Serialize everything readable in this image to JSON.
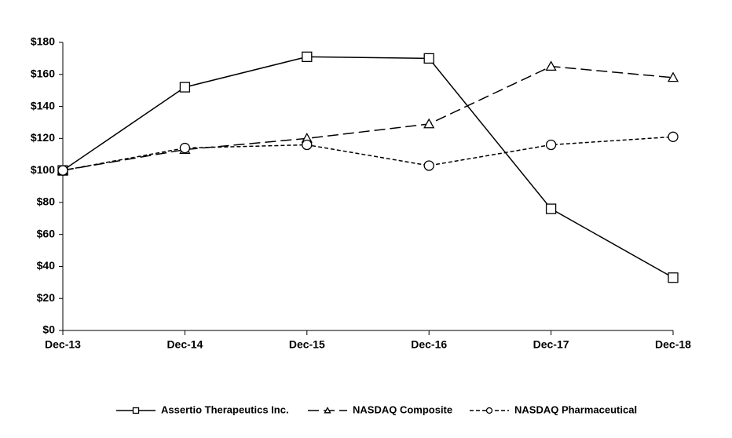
{
  "chart_data": {
    "type": "line",
    "categories": [
      "Dec-13",
      "Dec-14",
      "Dec-15",
      "Dec-16",
      "Dec-17",
      "Dec-18"
    ],
    "series": [
      {
        "name": "Assertio Therapeutics Inc.",
        "color": "#000000",
        "marker": "square",
        "line_style": "solid",
        "values": [
          100,
          152,
          171,
          170,
          76,
          33
        ]
      },
      {
        "name": "NASDAQ Composite",
        "color": "#000000",
        "marker": "triangle",
        "line_style": "long-dash",
        "values": [
          100,
          113,
          120,
          129,
          165,
          158
        ]
      },
      {
        "name": "NASDAQ Pharmaceutical",
        "color": "#000000",
        "marker": "circle",
        "line_style": "short-dash",
        "values": [
          100,
          114,
          116,
          103,
          116,
          121
        ]
      }
    ],
    "ylim": [
      0,
      180
    ],
    "yticks": [
      {
        "value": 0,
        "label": "$0"
      },
      {
        "value": 20,
        "label": "$20"
      },
      {
        "value": 40,
        "label": "$40"
      },
      {
        "value": 60,
        "label": "$60"
      },
      {
        "value": 80,
        "label": "$80"
      },
      {
        "value": 100,
        "label": "$100"
      },
      {
        "value": 120,
        "label": "$120"
      },
      {
        "value": 140,
        "label": "$140"
      },
      {
        "value": 160,
        "label": "$160"
      },
      {
        "value": 180,
        "label": "$180"
      }
    ],
    "grid": false,
    "legend": "bottom"
  }
}
